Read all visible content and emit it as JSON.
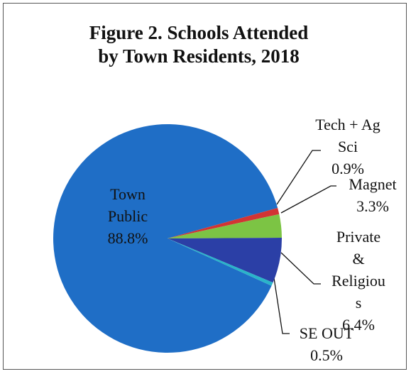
{
  "chart_data": {
    "type": "pie",
    "title": "Figure 2. Schools Attended by Town Residents, 2018",
    "categories": [
      "Town Public",
      "Tech + Ag Sci",
      "Magnet",
      "Private & Religious",
      "SE OUT"
    ],
    "values": [
      88.8,
      0.9,
      3.3,
      6.4,
      0.5
    ],
    "value_labels": [
      "88.8%",
      "0.9%",
      "3.3%",
      "6.4%",
      "0.5%"
    ],
    "colors": [
      "#1f6ec6",
      "#d23434",
      "#7cc444",
      "#2b3fa6",
      "#2ab4c9"
    ]
  }
}
